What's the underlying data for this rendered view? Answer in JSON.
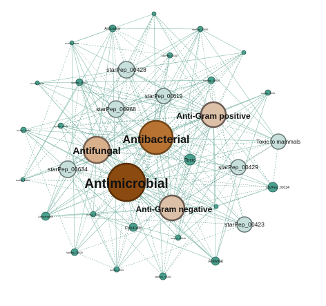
{
  "graph": {
    "nodes": [
      {
        "id": "antimicrobial",
        "label": "Antimicrobial",
        "kind": "hub",
        "fill": "#8b4a10",
        "stroke": "#5a2f08"
      },
      {
        "id": "antibacterial",
        "label": "Antibacterial",
        "kind": "hub",
        "fill": "#b87333",
        "stroke": "#6e4419"
      },
      {
        "id": "antifungal",
        "label": "Antifungal",
        "kind": "hub-light",
        "fill": "#d9b08c",
        "stroke": "#7a6354"
      },
      {
        "id": "anti-gram-positive",
        "label": "Anti-Gram positive",
        "kind": "hub-light",
        "fill": "#dcc0a8",
        "stroke": "#6b5b53"
      },
      {
        "id": "anti-gram-negative",
        "label": "Anti-Gram negative",
        "kind": "hub-light",
        "fill": "#dcc0a8",
        "stroke": "#6b5b53"
      },
      {
        "id": "starpep-00428",
        "label": "starPep_00428",
        "kind": "pep",
        "fill": "#c8e0dc",
        "stroke": "#6c7c78"
      },
      {
        "id": "starpep-00619",
        "label": "starPep_00619",
        "kind": "pep",
        "fill": "#c8e0dc",
        "stroke": "#6c7c78"
      },
      {
        "id": "starpep-00968",
        "label": "starPep_00968",
        "kind": "pep",
        "fill": "#c8e0dc",
        "stroke": "#6c7c78"
      },
      {
        "id": "starpep-00634",
        "label": "starPep_00634",
        "kind": "pep",
        "fill": "#c8e0dc",
        "stroke": "#6c7c78"
      },
      {
        "id": "starpep-00429",
        "label": "starPep_00429",
        "kind": "pep",
        "fill": "#c8e0dc",
        "stroke": "#6c7c78"
      },
      {
        "id": "starpep-00423",
        "label": "starPep_00423",
        "kind": "pep",
        "fill": "#c8e0dc",
        "stroke": "#6c7c78"
      },
      {
        "id": "toxic-to-mammals",
        "label": "Toxic to mammals",
        "kind": "pep",
        "fill": "#c8e0dc",
        "stroke": "#6c7c78"
      },
      {
        "id": "toxic",
        "label": "Toxic",
        "kind": "small",
        "fill": "#4aa08e",
        "stroke": "#2c6258"
      },
      {
        "id": "anticancer",
        "label": "Anticancer",
        "kind": "small",
        "fill": "#4aa08e",
        "stroke": "#2c6258"
      },
      {
        "id": "cytotoxic",
        "label": "Cytotoxic",
        "kind": "small",
        "fill": "#4aa08e",
        "stroke": "#2c6258"
      },
      {
        "id": "antiviral",
        "label": "Antiviral",
        "kind": "small",
        "fill": "#4aa08e",
        "stroke": "#2c6258"
      },
      {
        "id": "antiparasitic",
        "label": "Antiparasitic",
        "kind": "small",
        "fill": "#4aa08e",
        "stroke": "#2c6258"
      },
      {
        "id": "starpep-00134",
        "label": "starPep_00134",
        "kind": "small",
        "fill": "#4aa08e",
        "stroke": "#2c6258"
      },
      {
        "id": "starpep-00651",
        "label": "starPep_00651",
        "kind": "small",
        "fill": "#4aa08e",
        "stroke": "#2c6258"
      },
      {
        "id": "starpep-00307",
        "label": "starPep_00307",
        "kind": "small",
        "fill": "#4aa08e",
        "stroke": "#2c6258"
      },
      {
        "id": "starpep-00939",
        "label": "starPep_00939",
        "kind": "small",
        "fill": "#4aa08e",
        "stroke": "#2c6258"
      },
      {
        "id": "starpep-00507",
        "label": "starPep_00507",
        "kind": "small",
        "fill": "#4aa08e",
        "stroke": "#2c6258"
      },
      {
        "id": "starpep-00026",
        "label": "starPep_00026",
        "kind": "small",
        "fill": "#4aa08e",
        "stroke": "#2c6258"
      },
      {
        "id": "starpep-00302",
        "label": "starPep_00302",
        "kind": "small",
        "fill": "#4aa08e",
        "stroke": "#2c6258"
      },
      {
        "id": "starpep-left-1",
        "label": "starPep_00156",
        "kind": "small",
        "fill": "#4aa08e",
        "stroke": "#2c6258"
      },
      {
        "id": "starpep-left-2",
        "label": "starPep_00410",
        "kind": "small",
        "fill": "#4aa08e",
        "stroke": "#2c6258"
      },
      {
        "id": "starpep-left-3",
        "label": "starPep_00533",
        "kind": "small",
        "fill": "#4aa08e",
        "stroke": "#2c6258"
      },
      {
        "id": "starpep-left-4",
        "label": "starPep_00211",
        "kind": "small",
        "fill": "#4aa08e",
        "stroke": "#2c6258"
      },
      {
        "id": "starpep-top-1",
        "label": "starPep_00990",
        "kind": "small",
        "fill": "#4aa08e",
        "stroke": "#2c6258"
      },
      {
        "id": "starpep-mid-1",
        "label": "starPep_00716",
        "kind": "small",
        "fill": "#4aa08e",
        "stroke": "#2c6258"
      },
      {
        "id": "starpep-right-1",
        "label": "starPep_00055",
        "kind": "small",
        "fill": "#4aa08e",
        "stroke": "#2c6258"
      },
      {
        "id": "starpep-bot-1",
        "label": "starPep_00619b",
        "kind": "small",
        "fill": "#4aa08e",
        "stroke": "#2c6258"
      },
      {
        "id": "starpep-bot-2",
        "label": "starPep_00681",
        "kind": "small",
        "fill": "#4aa08e",
        "stroke": "#2c6258"
      },
      {
        "id": "dot-1",
        "label": "",
        "kind": "dot",
        "fill": "#4aa08e",
        "stroke": "#2c6258"
      },
      {
        "id": "dot-2",
        "label": "",
        "kind": "dot",
        "fill": "#4aa08e",
        "stroke": "#2c6258"
      },
      {
        "id": "dot-3",
        "label": "",
        "kind": "dot",
        "fill": "#4aa08e",
        "stroke": "#2c6258"
      }
    ]
  }
}
